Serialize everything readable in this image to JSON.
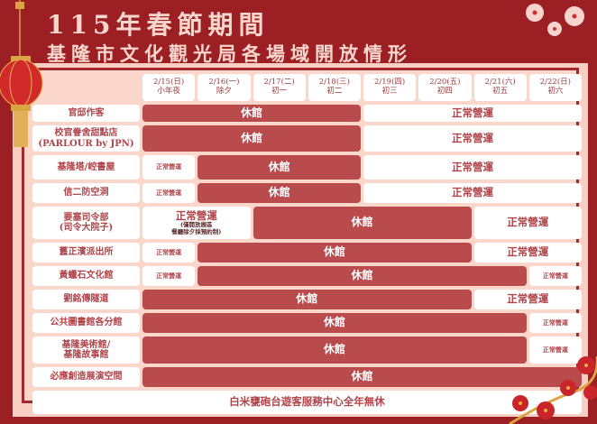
{
  "title": {
    "line1": "115年春節期間",
    "line2": "基隆市文化觀光局各場域開放情形"
  },
  "colors": {
    "background": "#9c1f24",
    "closed": "#ba4b4d",
    "open": "#ffffff",
    "text": "#b0444a"
  },
  "dates": [
    {
      "date": "2/15(日)",
      "day": "小年夜"
    },
    {
      "date": "2/16(一)",
      "day": "除夕"
    },
    {
      "date": "2/17(二)",
      "day": "初一"
    },
    {
      "date": "2/18(三)",
      "day": "初二"
    },
    {
      "date": "2/19(四)",
      "day": "初三"
    },
    {
      "date": "2/20(五)",
      "day": "初四"
    },
    {
      "date": "2/21(六)",
      "day": "初五"
    },
    {
      "date": "2/22(日)",
      "day": "初六"
    }
  ],
  "venues": [
    {
      "name": "官邸作客",
      "spans": [
        {
          "status": "closed",
          "text": "休館",
          "cols": 4
        },
        {
          "status": "open",
          "text": "正常營運",
          "cols": 4
        }
      ]
    },
    {
      "name": "校官眷舍甜點店\n(PARLOUR by JPN)",
      "spans": [
        {
          "status": "closed",
          "text": "休館",
          "cols": 4
        },
        {
          "status": "open",
          "text": "正常營運",
          "cols": 4
        }
      ]
    },
    {
      "name": "基隆塔/崆書屋",
      "spans": [
        {
          "status": "open",
          "text": "正常營運",
          "cols": 1
        },
        {
          "status": "closed",
          "text": "休館",
          "cols": 3
        },
        {
          "status": "open",
          "text": "正常營運",
          "cols": 4
        }
      ]
    },
    {
      "name": "信二防空洞",
      "spans": [
        {
          "status": "open",
          "text": "正常營運",
          "cols": 1
        },
        {
          "status": "closed",
          "text": "休館",
          "cols": 3
        },
        {
          "status": "open",
          "text": "正常營運",
          "cols": 4
        }
      ]
    },
    {
      "name": "要塞司令部\n(司令大院子)",
      "spans": [
        {
          "status": "open",
          "text": "正常營運",
          "note": "(僅開放展區\n餐廳除夕採預約制)",
          "cols": 2
        },
        {
          "status": "closed",
          "text": "休館",
          "cols": 4
        },
        {
          "status": "open",
          "text": "正常營運",
          "cols": 2
        }
      ]
    },
    {
      "name": "舊正濱派出所",
      "spans": [
        {
          "status": "open",
          "text": "正常營運",
          "cols": 1
        },
        {
          "status": "closed",
          "text": "休館",
          "cols": 5
        },
        {
          "status": "open",
          "text": "正常營運",
          "cols": 2
        }
      ]
    },
    {
      "name": "黃蠟石文化館",
      "spans": [
        {
          "status": "open",
          "text": "正常營運",
          "cols": 1
        },
        {
          "status": "closed",
          "text": "休館",
          "cols": 6
        },
        {
          "status": "open",
          "text": "正常營運",
          "cols": 1
        }
      ]
    },
    {
      "name": "劉銘傳隧道",
      "spans": [
        {
          "status": "closed",
          "text": "休館",
          "cols": 6
        },
        {
          "status": "open",
          "text": "正常營運",
          "cols": 2
        }
      ]
    },
    {
      "name": "公共圖書館各分館",
      "spans": [
        {
          "status": "closed",
          "text": "休館",
          "cols": 7
        },
        {
          "status": "open",
          "text": "正常營運",
          "cols": 1
        }
      ]
    },
    {
      "name": "基隆美術館/\n基隆故事館",
      "spans": [
        {
          "status": "closed",
          "text": "休館",
          "cols": 7
        },
        {
          "status": "open",
          "text": "正常營運",
          "cols": 1
        }
      ]
    },
    {
      "name": "必應創造展演空間",
      "spans": [
        {
          "status": "closed",
          "text": "休館",
          "cols": 8
        }
      ]
    }
  ],
  "footer": "白米甕砲台遊客服務中心全年無休"
}
